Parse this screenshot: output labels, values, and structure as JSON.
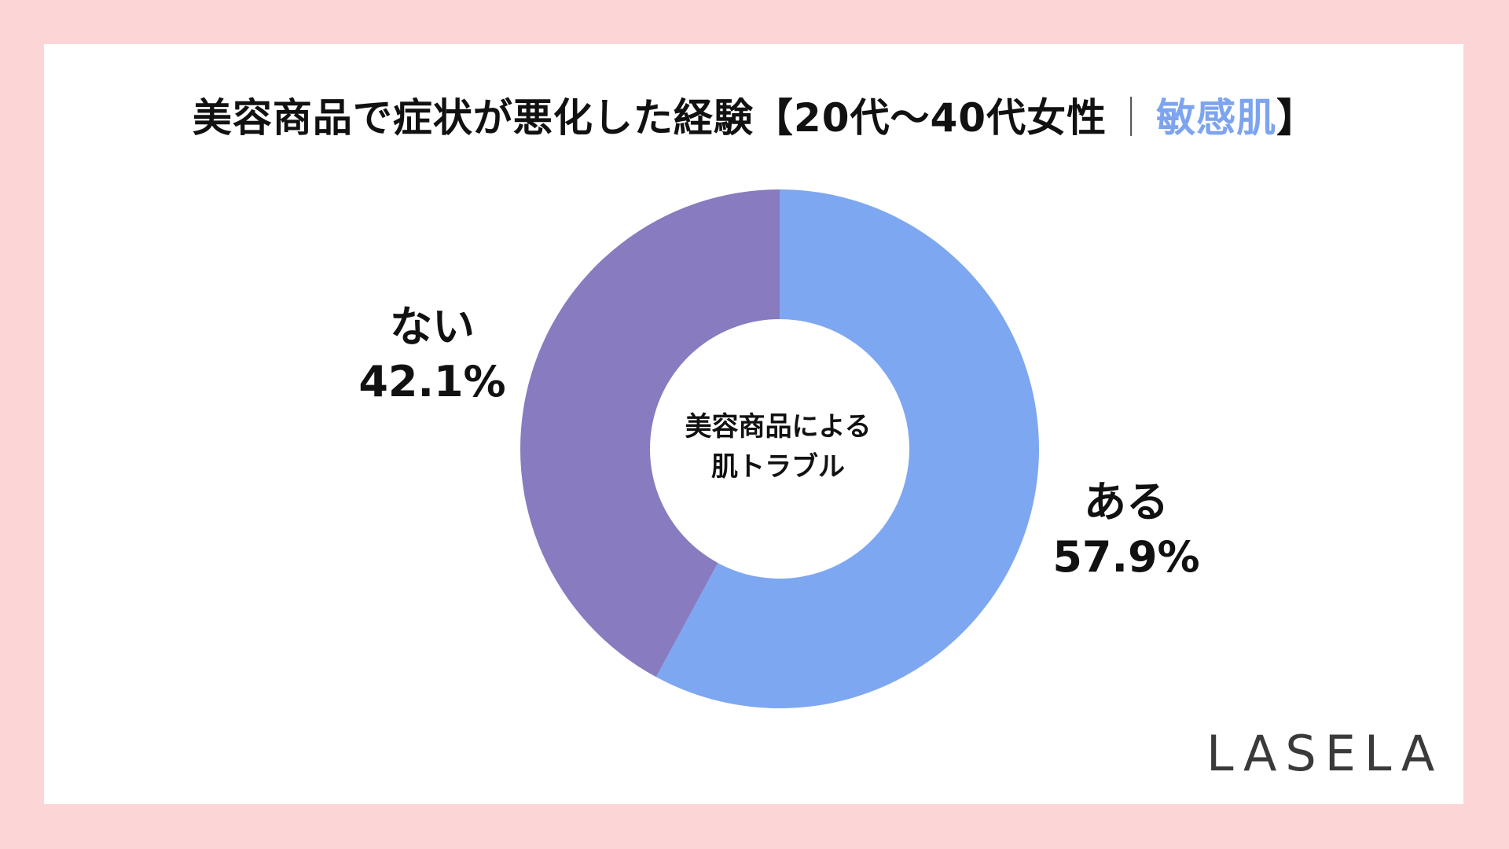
{
  "page": {
    "title_main": "美容商品で症状が悪化した経験【20代〜40代女性",
    "title_sep": "｜",
    "title_accent": "敏感肌",
    "title_close": "】",
    "logo": "LASELA"
  },
  "chart_data": {
    "type": "pie",
    "title": "美容商品で症状が悪化した経験【20代〜40代女性｜敏感肌】",
    "center_label": [
      "美容商品による",
      "肌トラブル"
    ],
    "slices": [
      {
        "label": "ある",
        "value": 57.9,
        "display": "57.9%",
        "color": "#7ea7f2"
      },
      {
        "label": "ない",
        "value": 42.1,
        "display": "42.1%",
        "color": "#887bc0"
      }
    ]
  }
}
